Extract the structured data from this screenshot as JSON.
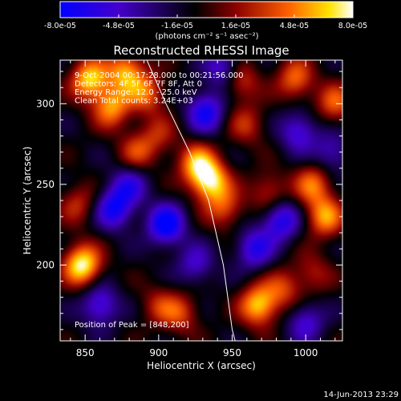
{
  "colorbar": {
    "ticks": [
      "-8.0e-05",
      "-4.8e-05",
      "-1.6e-05",
      "1.6e-05",
      "4.8e-05",
      "8.0e-05"
    ],
    "unit_label": "(photons cm⁻² s⁻¹ asec⁻²)",
    "gradient_colors": [
      "#0000ff",
      "#4400cc",
      "#000000",
      "#8a0000",
      "#ff6000",
      "#ffe400",
      "#ffffff"
    ]
  },
  "chart_data": {
    "type": "heatmap",
    "title": "Reconstructed RHESSI Image",
    "xlabel": "Heliocentric X (arcsec)",
    "ylabel": "Heliocentric Y (arcsec)",
    "xlim": [
      833,
      1025
    ],
    "ylim": [
      153,
      327
    ],
    "x_ticks": [
      "850",
      "900",
      "950",
      "1000"
    ],
    "y_ticks": [
      "200",
      "250",
      "300"
    ],
    "annotations": [
      "9-Oct-2004 00:17:28.000 to 00:21:56.000",
      "Detectors: 4F 5F 6F 7F 8F, Att 0",
      "Energy Range: 12.0 - 25.0 keV",
      "Clean    Total counts: 3.24E+03"
    ],
    "peak_label": "Position of Peak = [848,200]",
    "limb_curve": [
      [
        892,
        327
      ],
      [
        905,
        300
      ],
      [
        921,
        270
      ],
      [
        934,
        240
      ],
      [
        944,
        200
      ],
      [
        950,
        160
      ],
      [
        952,
        153
      ]
    ],
    "blobs": [
      {
        "x": 848,
        "y": 200,
        "v": 1.0
      },
      {
        "x": 853,
        "y": 315,
        "v": 0.85
      },
      {
        "x": 868,
        "y": 298,
        "v": 0.7
      },
      {
        "x": 878,
        "y": 320,
        "v": 0.75
      },
      {
        "x": 892,
        "y": 306,
        "v": 0.55
      },
      {
        "x": 885,
        "y": 270,
        "v": 0.45
      },
      {
        "x": 900,
        "y": 280,
        "v": 0.35
      },
      {
        "x": 935,
        "y": 252,
        "v": 0.9
      },
      {
        "x": 926,
        "y": 263,
        "v": 0.7
      },
      {
        "x": 945,
        "y": 235,
        "v": 0.5
      },
      {
        "x": 955,
        "y": 315,
        "v": 0.55
      },
      {
        "x": 960,
        "y": 287,
        "v": 0.4
      },
      {
        "x": 993,
        "y": 315,
        "v": 0.6
      },
      {
        "x": 975,
        "y": 245,
        "v": 0.45
      },
      {
        "x": 1005,
        "y": 250,
        "v": 0.6
      },
      {
        "x": 1013,
        "y": 230,
        "v": 0.7
      },
      {
        "x": 1020,
        "y": 300,
        "v": 0.55
      },
      {
        "x": 968,
        "y": 175,
        "v": 0.85
      },
      {
        "x": 985,
        "y": 185,
        "v": 0.45
      },
      {
        "x": 900,
        "y": 175,
        "v": 0.35
      },
      {
        "x": 915,
        "y": 170,
        "v": 0.45
      },
      {
        "x": 845,
        "y": 238,
        "v": 0.4
      },
      {
        "x": 1005,
        "y": 195,
        "v": 0.35
      },
      {
        "x": 932,
        "y": 295,
        "v": -0.7
      },
      {
        "x": 905,
        "y": 225,
        "v": -0.85
      },
      {
        "x": 870,
        "y": 235,
        "v": -0.7
      },
      {
        "x": 965,
        "y": 210,
        "v": -0.6
      },
      {
        "x": 995,
        "y": 283,
        "v": -0.55
      },
      {
        "x": 1000,
        "y": 165,
        "v": -0.5
      },
      {
        "x": 860,
        "y": 175,
        "v": -0.6
      },
      {
        "x": 945,
        "y": 322,
        "v": -0.6
      },
      {
        "x": 983,
        "y": 228,
        "v": -0.7
      },
      {
        "x": 925,
        "y": 200,
        "v": -0.45
      },
      {
        "x": 1018,
        "y": 270,
        "v": -0.45
      },
      {
        "x": 880,
        "y": 250,
        "v": -0.5
      }
    ]
  },
  "footer": {
    "timestamp": "14-Jun-2013 23:29"
  }
}
